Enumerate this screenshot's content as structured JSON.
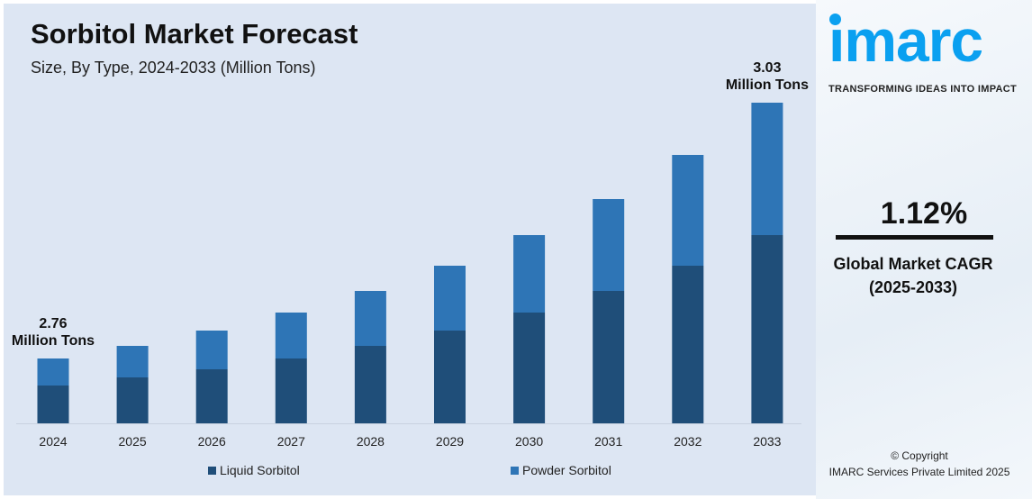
{
  "header": {
    "title": "Sorbitol Market Forecast",
    "subtitle": "Size, By Type, 2024-2033 (Million Tons)"
  },
  "chart_data": {
    "type": "bar",
    "stacked": true,
    "title": "Sorbitol Market Forecast",
    "subtitle": "Size, By Type, 2024-2033 (Million Tons)",
    "categories": [
      "2024",
      "2025",
      "2026",
      "2027",
      "2028",
      "2029",
      "2030",
      "2031",
      "2032",
      "2033"
    ],
    "series": [
      {
        "name": "Liquid Sorbitol",
        "color": "#1f4e79",
        "values": [
          42,
          51,
          60,
          72,
          86,
          103,
          123,
          147,
          175,
          209
        ]
      },
      {
        "name": "Powder Sorbitol",
        "color": "#2e75b6",
        "values": [
          30,
          35,
          43,
          51,
          61,
          72,
          86,
          102,
          123,
          147
        ]
      }
    ],
    "ylim": [
      0,
      356
    ],
    "grid": false,
    "legend": "bottom",
    "annotations": [
      {
        "category": "2024",
        "value": "2.76",
        "unit": "Million Tons"
      },
      {
        "category": "2033",
        "value": "3.03",
        "unit": "Million Tons"
      }
    ]
  },
  "sidebar": {
    "logo": "imarc",
    "tagline": "TRANSFORMING IDEAS INTO IMPACT",
    "cagr_value": "1.12%",
    "cagr_label": "Global Market CAGR",
    "cagr_period": "(2025-2033)",
    "copyright": "© Copyright",
    "company": "IMARC Services Private Limited 2025",
    "logo_color": "#0aa0f0"
  }
}
